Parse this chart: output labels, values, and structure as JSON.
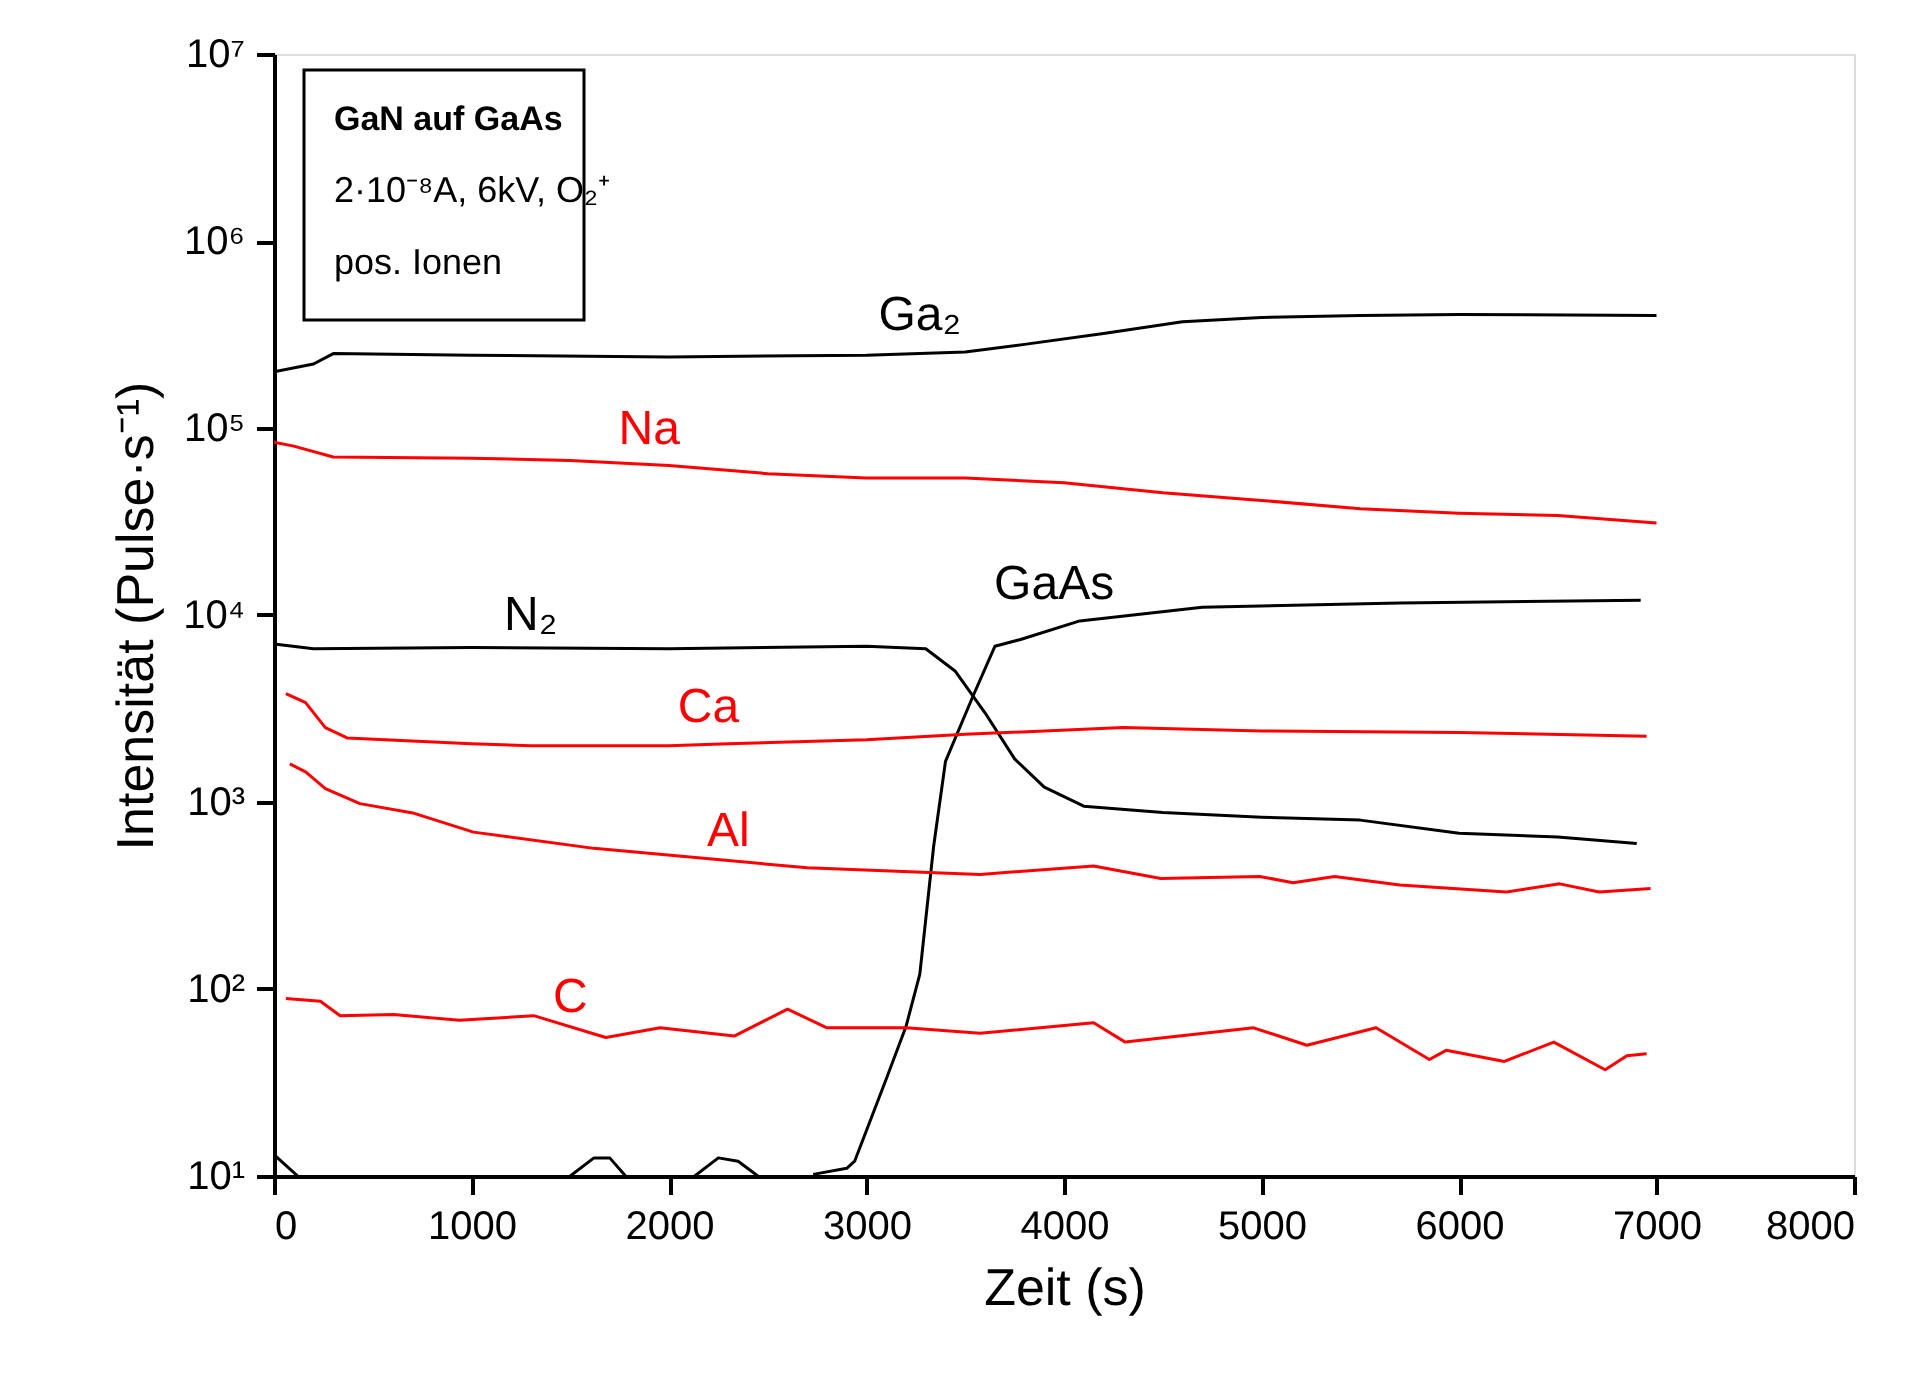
{
  "chart_data": {
    "type": "line",
    "title": "GaN auf GaAs",
    "annotations": [
      "2·10⁻⁸A, 6kV, O₂⁺",
      "pos. Ionen"
    ],
    "xlabel": "Zeit (s)",
    "ylabel": "Intensität (Pulse·s⁻¹)",
    "log": "y",
    "grid": false,
    "marker": "none",
    "line_style": "solid",
    "xlim": [
      0,
      8000
    ],
    "xticks": [
      0,
      1000,
      2000,
      3000,
      4000,
      5000,
      6000,
      7000,
      8000
    ],
    "ylim": [
      10,
      10000000
    ],
    "yticks": [
      {
        "value": 10,
        "label": "10¹"
      },
      {
        "value": 100,
        "label": "10²"
      },
      {
        "value": 1000,
        "label": "10³"
      },
      {
        "value": 10000,
        "label": "10⁴"
      },
      {
        "value": 100000,
        "label": "10⁵"
      },
      {
        "value": 1000000,
        "label": "10⁶"
      },
      {
        "value": 10000000,
        "label": "10⁷"
      }
    ],
    "series": [
      {
        "name": "Ga₂",
        "color": "#000000",
        "x": [
          0,
          200,
          300,
          1000,
          2000,
          3000,
          3500,
          3800,
          4200,
          4600,
          5000,
          5500,
          6000,
          7000
        ],
        "values": [
          200000,
          220000,
          250000,
          245000,
          240000,
          245000,
          255000,
          280000,
          320000,
          370000,
          390000,
          400000,
          405000,
          400000
        ]
      },
      {
        "name": "Na",
        "color": "#ff0000",
        "x": [
          0,
          100,
          300,
          1000,
          1500,
          2000,
          2500,
          3000,
          3500,
          4000,
          4500,
          5000,
          5500,
          6000,
          6500,
          7000
        ],
        "values": [
          84000,
          80000,
          70000,
          69000,
          67000,
          63000,
          57000,
          54000,
          54000,
          51000,
          45000,
          41000,
          37000,
          35000,
          34000,
          31000
        ]
      },
      {
        "name": "N₂",
        "color": "#000000",
        "x": [
          0,
          200,
          1000,
          2000,
          3000,
          3300,
          3450,
          3600,
          3750,
          3900,
          4100,
          4500,
          5000,
          5500,
          6000,
          6500,
          6900
        ],
        "values": [
          7000,
          6600,
          6700,
          6600,
          6800,
          6600,
          5000,
          3000,
          1700,
          1200,
          950,
          880,
          830,
          800,
          680,
          650,
          600
        ]
      },
      {
        "name": "GaAs",
        "color": "#000000",
        "x": [
          0,
          120,
          800,
          1500,
          1620,
          1700,
          1780,
          1950,
          2130,
          2250,
          2350,
          2450,
          2600,
          2730,
          2900,
          2940,
          3100,
          3200,
          3270,
          3340,
          3400,
          3540,
          3650,
          3780,
          4080,
          4700,
          5700,
          6920
        ],
        "values": [
          13,
          10,
          null,
          10,
          12.5,
          12.5,
          10,
          null,
          10,
          12.5,
          12,
          10,
          null,
          10.2,
          11,
          12,
          33,
          63,
          120,
          580,
          1650,
          3700,
          6800,
          7400,
          9300,
          11000,
          11600,
          12000
        ]
      },
      {
        "name": "Ca",
        "color": "#ff0000",
        "x": [
          60,
          160,
          260,
          370,
          1000,
          1300,
          2000,
          2300,
          3000,
          3500,
          4300,
          5000,
          6000,
          6950
        ],
        "values": [
          3800,
          3400,
          2500,
          2200,
          2050,
          2000,
          2000,
          2050,
          2150,
          2300,
          2500,
          2400,
          2350,
          2250
        ]
      },
      {
        "name": "Al",
        "color": "#ff0000",
        "x": [
          80,
          160,
          260,
          435,
          710,
          1010,
          1620,
          2700,
          3575,
          4150,
          4490,
          4990,
          5160,
          5370,
          5700,
          6240,
          6510,
          6710,
          6970
        ],
        "values": [
          1600,
          1450,
          1180,
          980,
          870,
          690,
          565,
          445,
          410,
          455,
          390,
          400,
          370,
          400,
          360,
          330,
          365,
          330,
          345
        ]
      },
      {
        "name": "C",
        "color": "#ff0000",
        "x": [
          60,
          235,
          335,
          605,
          940,
          1315,
          1680,
          1955,
          2330,
          2600,
          2800,
          3200,
          3575,
          4150,
          4310,
          4960,
          5230,
          5580,
          5850,
          5935,
          6230,
          6480,
          6740,
          6850,
          6950
        ],
        "values": [
          89,
          86,
          72,
          73,
          68,
          72,
          55,
          62,
          56,
          78,
          62,
          62,
          58,
          66,
          52,
          62,
          50,
          62,
          42,
          47,
          41,
          52,
          37,
          44,
          45
        ]
      }
    ]
  }
}
